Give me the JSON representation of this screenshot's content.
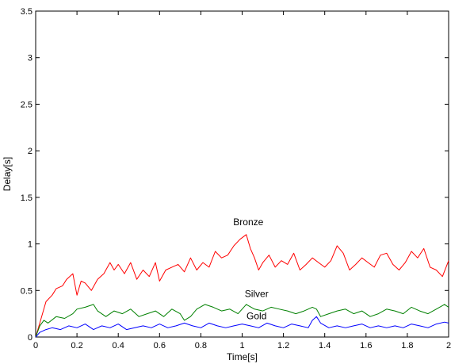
{
  "chart_data": {
    "type": "line",
    "title": "",
    "xlabel": "Time[s]",
    "ylabel": "Delay[s]",
    "xlim": [
      0,
      2
    ],
    "ylim": [
      0,
      3.5
    ],
    "xticks": [
      0,
      0.2,
      0.4,
      0.6,
      0.8,
      1,
      1.2,
      1.4,
      1.6,
      1.8,
      2
    ],
    "xtick_labels": [
      "0",
      "0.2",
      "0.4",
      "0.6",
      "0.8",
      "1",
      "1.2",
      "1.4",
      "1.6",
      "1.8",
      "2"
    ],
    "yticks": [
      0,
      0.5,
      1,
      1.5,
      2,
      2.5,
      3,
      3.5
    ],
    "ytick_labels": [
      "0",
      "0.5",
      "1",
      "1.5",
      "2",
      "2.5",
      "3",
      "3.5"
    ],
    "grid": false,
    "legend": "none",
    "series": [
      {
        "name": "Bronze",
        "color": "#ff0000",
        "x": [
          0,
          0.02,
          0.05,
          0.08,
          0.1,
          0.13,
          0.15,
          0.18,
          0.2,
          0.22,
          0.24,
          0.27,
          0.3,
          0.33,
          0.36,
          0.38,
          0.4,
          0.43,
          0.46,
          0.49,
          0.52,
          0.55,
          0.58,
          0.6,
          0.63,
          0.66,
          0.69,
          0.72,
          0.75,
          0.78,
          0.81,
          0.84,
          0.87,
          0.9,
          0.93,
          0.96,
          0.99,
          1.02,
          1.04,
          1.06,
          1.08,
          1.1,
          1.13,
          1.16,
          1.19,
          1.22,
          1.25,
          1.28,
          1.31,
          1.34,
          1.37,
          1.4,
          1.43,
          1.46,
          1.49,
          1.52,
          1.55,
          1.58,
          1.61,
          1.64,
          1.67,
          1.7,
          1.73,
          1.76,
          1.79,
          1.82,
          1.85,
          1.88,
          1.91,
          1.94,
          1.97,
          2.0
        ],
        "y": [
          0,
          0.15,
          0.38,
          0.45,
          0.52,
          0.55,
          0.62,
          0.68,
          0.45,
          0.6,
          0.58,
          0.5,
          0.62,
          0.68,
          0.8,
          0.72,
          0.78,
          0.68,
          0.8,
          0.62,
          0.72,
          0.65,
          0.8,
          0.6,
          0.72,
          0.75,
          0.78,
          0.7,
          0.85,
          0.72,
          0.8,
          0.75,
          0.92,
          0.85,
          0.88,
          0.98,
          1.05,
          1.1,
          0.95,
          0.85,
          0.72,
          0.8,
          0.88,
          0.75,
          0.82,
          0.78,
          0.9,
          0.72,
          0.78,
          0.85,
          0.8,
          0.75,
          0.82,
          0.98,
          0.9,
          0.72,
          0.78,
          0.85,
          0.8,
          0.75,
          0.88,
          0.9,
          0.78,
          0.72,
          0.8,
          0.92,
          0.85,
          0.95,
          0.75,
          0.72,
          0.65,
          0.82
        ]
      },
      {
        "name": "Silver",
        "color": "#008000",
        "x": [
          0,
          0.02,
          0.04,
          0.06,
          0.1,
          0.14,
          0.18,
          0.2,
          0.24,
          0.28,
          0.3,
          0.34,
          0.38,
          0.42,
          0.46,
          0.5,
          0.54,
          0.58,
          0.62,
          0.66,
          0.7,
          0.72,
          0.75,
          0.78,
          0.82,
          0.86,
          0.9,
          0.94,
          0.98,
          1.02,
          1.06,
          1.1,
          1.14,
          1.18,
          1.22,
          1.26,
          1.3,
          1.34,
          1.36,
          1.38,
          1.42,
          1.46,
          1.5,
          1.54,
          1.58,
          1.62,
          1.66,
          1.7,
          1.74,
          1.78,
          1.82,
          1.86,
          1.9,
          1.94,
          1.98,
          2.0
        ],
        "y": [
          0,
          0.12,
          0.18,
          0.15,
          0.22,
          0.2,
          0.25,
          0.3,
          0.32,
          0.35,
          0.28,
          0.22,
          0.28,
          0.25,
          0.3,
          0.22,
          0.25,
          0.28,
          0.22,
          0.3,
          0.25,
          0.18,
          0.22,
          0.3,
          0.35,
          0.32,
          0.28,
          0.3,
          0.25,
          0.35,
          0.3,
          0.28,
          0.32,
          0.3,
          0.28,
          0.25,
          0.28,
          0.32,
          0.3,
          0.22,
          0.25,
          0.28,
          0.3,
          0.25,
          0.28,
          0.22,
          0.25,
          0.3,
          0.28,
          0.25,
          0.32,
          0.28,
          0.25,
          0.3,
          0.35,
          0.32
        ]
      },
      {
        "name": "Gold",
        "color": "#0000ff",
        "x": [
          0,
          0.02,
          0.05,
          0.08,
          0.12,
          0.16,
          0.2,
          0.24,
          0.28,
          0.32,
          0.36,
          0.4,
          0.44,
          0.48,
          0.52,
          0.56,
          0.6,
          0.64,
          0.68,
          0.72,
          0.76,
          0.8,
          0.84,
          0.88,
          0.92,
          0.96,
          1.0,
          1.04,
          1.08,
          1.12,
          1.16,
          1.2,
          1.24,
          1.28,
          1.32,
          1.34,
          1.36,
          1.38,
          1.42,
          1.46,
          1.5,
          1.54,
          1.58,
          1.62,
          1.66,
          1.7,
          1.74,
          1.78,
          1.82,
          1.86,
          1.9,
          1.94,
          1.98,
          2.0
        ],
        "y": [
          0,
          0.05,
          0.08,
          0.1,
          0.08,
          0.12,
          0.1,
          0.14,
          0.08,
          0.12,
          0.1,
          0.14,
          0.08,
          0.1,
          0.12,
          0.1,
          0.14,
          0.1,
          0.12,
          0.15,
          0.12,
          0.1,
          0.15,
          0.12,
          0.1,
          0.12,
          0.14,
          0.12,
          0.1,
          0.15,
          0.12,
          0.1,
          0.14,
          0.12,
          0.1,
          0.18,
          0.22,
          0.15,
          0.1,
          0.12,
          0.1,
          0.12,
          0.14,
          0.1,
          0.12,
          0.1,
          0.12,
          0.1,
          0.14,
          0.12,
          0.1,
          0.14,
          0.16,
          0.15
        ]
      }
    ],
    "annotations": [
      {
        "text": "Bronze",
        "x": 1.03,
        "y": 1.2
      },
      {
        "text": "Silver",
        "x": 1.07,
        "y": 0.43
      },
      {
        "text": "Gold",
        "x": 1.07,
        "y": 0.19
      }
    ]
  }
}
